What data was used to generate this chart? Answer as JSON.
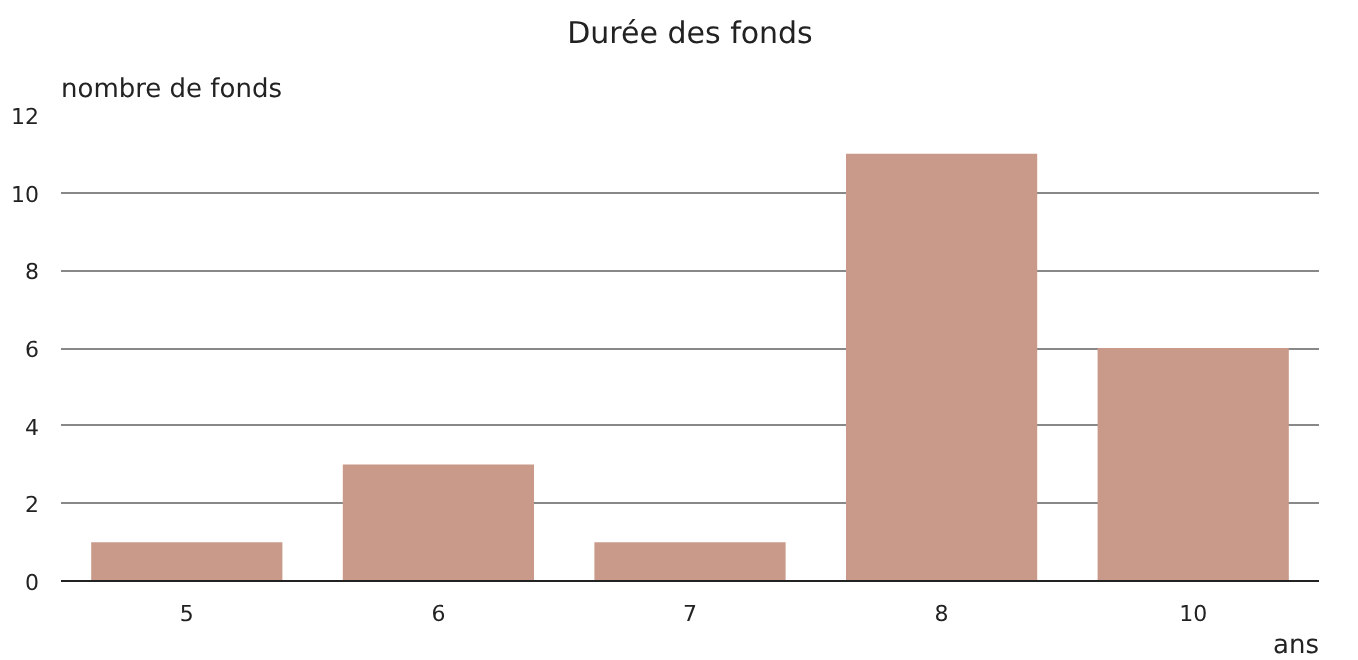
{
  "chart_data": {
    "type": "bar",
    "title": "Durée des fonds",
    "xlabel": "ans",
    "ylabel": "nombre de fonds",
    "categories": [
      "5",
      "6",
      "7",
      "8",
      "10"
    ],
    "values": [
      1,
      3,
      1,
      11,
      6
    ],
    "color": "#c99a89",
    "ylim": [
      0,
      12
    ],
    "yticks": [
      0,
      2,
      4,
      6,
      8,
      10,
      12
    ],
    "grid": "y"
  }
}
